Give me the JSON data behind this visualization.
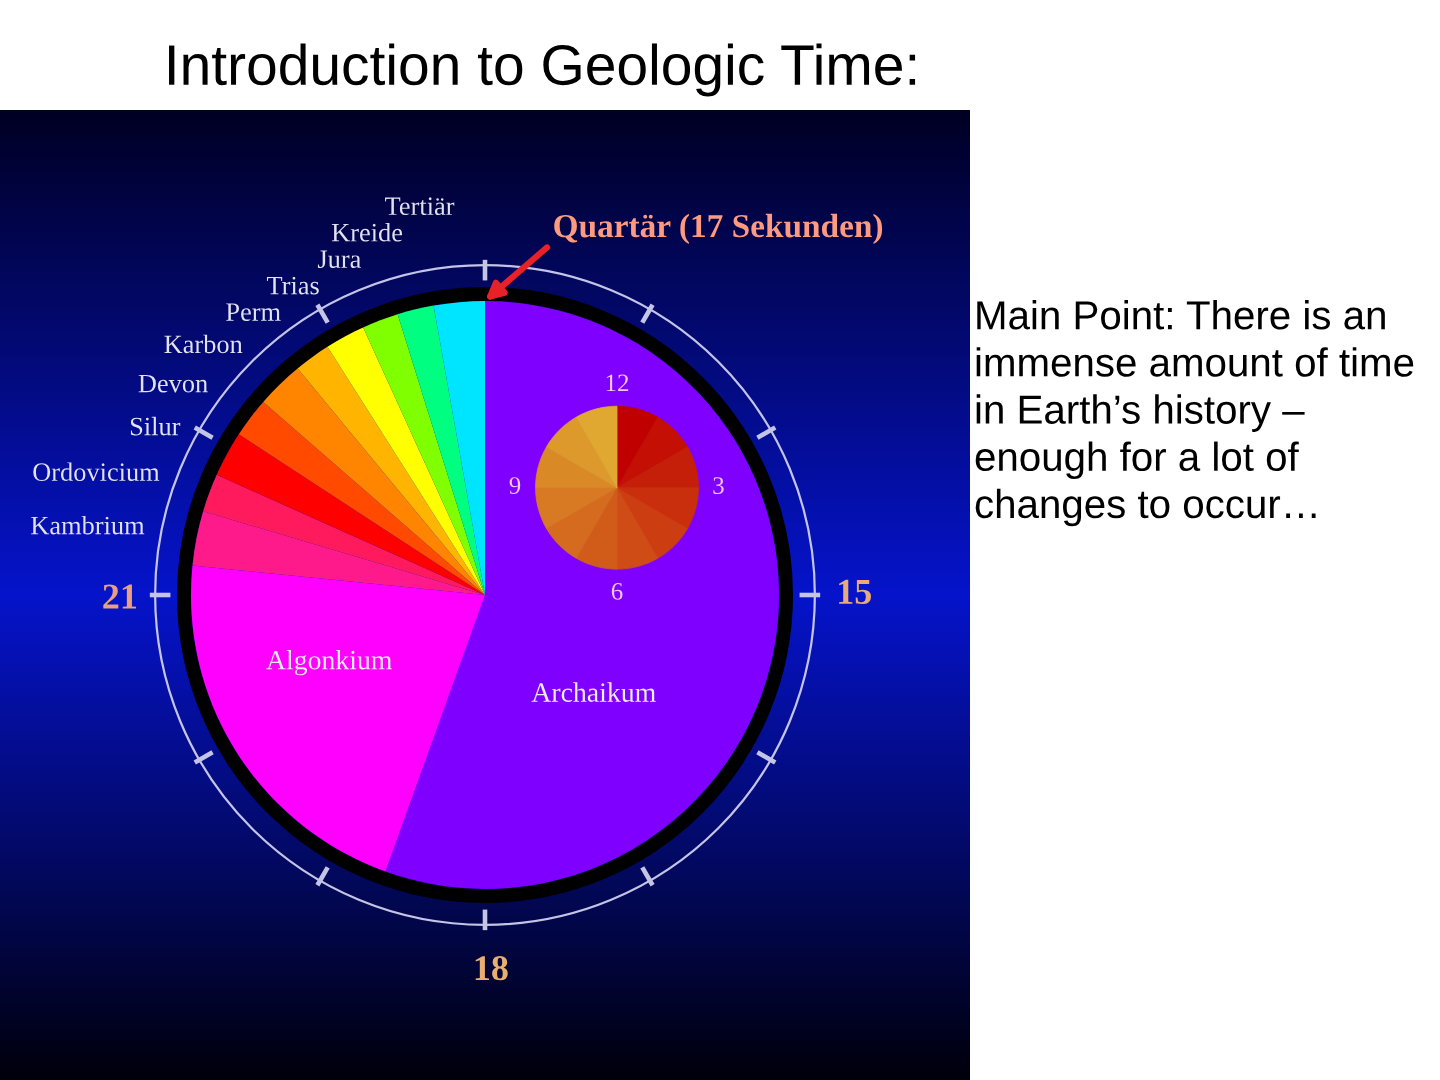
{
  "chart_data": {
    "type": "pie",
    "title": "Introduction to Geologic Time:",
    "categories": [
      "Archaikum",
      "Algonkium",
      "Kambrium",
      "Ordovicium",
      "Silur",
      "Devon",
      "Karbon",
      "Perm",
      "Trias",
      "Jura",
      "Kreide",
      "Tertiär"
    ],
    "values": [
      55.5,
      21.1,
      3.0,
      2.1,
      2.5,
      2.2,
      2.6,
      2.0,
      2.2,
      2.0,
      2.0,
      2.8
    ],
    "colors": [
      "#8000ff",
      "#ff00ff",
      "#ff1a8c",
      "#ff1a5e",
      "#ff0000",
      "#ff4a00",
      "#ff8400",
      "#ffb400",
      "#ffff00",
      "#80ff00",
      "#00ff80",
      "#00e5ff"
    ],
    "annotations": [
      "Quartär (17 Sekunden)",
      "15",
      "18",
      "21",
      "12",
      "3",
      "6",
      "9",
      "Main Point: There is an immense amount of time in Earth’s history – enough for a lot of changes to occur…"
    ]
  }
}
